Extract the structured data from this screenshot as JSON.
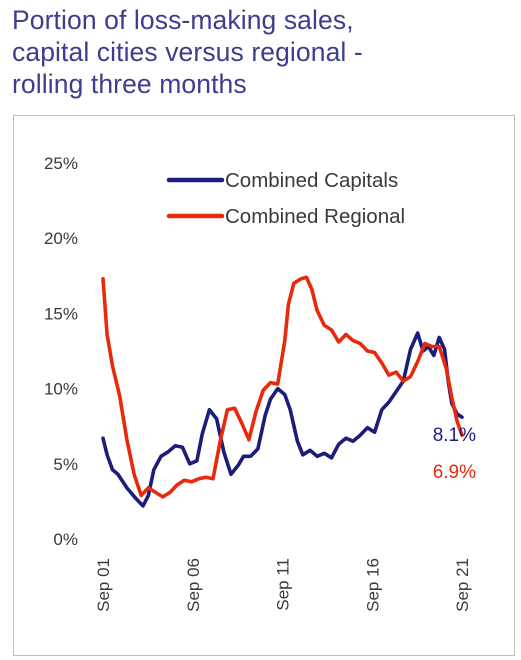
{
  "title_lines": [
    "Portion of loss-making sales,",
    "capital cities versus regional -",
    "rolling three months"
  ],
  "colors": {
    "capitals": "#1c1c7a",
    "regional": "#e8290b",
    "title": "#3d3d8f"
  },
  "chart_data": {
    "type": "line",
    "title": "Portion of loss-making sales, capital cities versus regional - rolling three months",
    "xlabel": "",
    "ylabel": "",
    "ylim": [
      0,
      25
    ],
    "y_ticks": [
      "0%",
      "5%",
      "10%",
      "15%",
      "20%",
      "25%"
    ],
    "y_tick_values": [
      0,
      5,
      10,
      15,
      20,
      25
    ],
    "x_ticks": [
      "Sep 01",
      "Sep 06",
      "Sep 11",
      "Sep 16",
      "Sep 21"
    ],
    "x_tick_values": [
      2001.67,
      2006.67,
      2011.67,
      2016.67,
      2021.67
    ],
    "grid": false,
    "legend_position": "top-right",
    "series": [
      {
        "name": "Combined Capitals",
        "end_label": "8.1%",
        "x": [
          2001.67,
          2001.9,
          2002.2,
          2002.5,
          2003.0,
          2003.5,
          2003.9,
          2004.2,
          2004.5,
          2004.9,
          2005.3,
          2005.7,
          2006.1,
          2006.5,
          2006.9,
          2007.2,
          2007.6,
          2008.0,
          2008.4,
          2008.8,
          2009.2,
          2009.5,
          2009.9,
          2010.3,
          2010.7,
          2011.0,
          2011.4,
          2011.8,
          2012.1,
          2012.5,
          2012.8,
          2013.2,
          2013.6,
          2014.0,
          2014.4,
          2014.8,
          2015.2,
          2015.6,
          2016.0,
          2016.4,
          2016.8,
          2017.2,
          2017.6,
          2018.0,
          2018.4,
          2018.8,
          2019.2,
          2019.5,
          2019.8,
          2020.1,
          2020.4,
          2020.7,
          2020.9,
          2021.1,
          2021.4,
          2021.67
        ],
        "y": [
          6.7,
          5.6,
          4.6,
          4.3,
          3.4,
          2.7,
          2.2,
          2.9,
          4.6,
          5.5,
          5.8,
          6.2,
          6.1,
          5.0,
          5.2,
          7.0,
          8.6,
          8.0,
          5.8,
          4.3,
          4.9,
          5.5,
          5.5,
          6.0,
          8.2,
          9.3,
          10.0,
          9.6,
          8.6,
          6.5,
          5.6,
          5.9,
          5.5,
          5.7,
          5.4,
          6.3,
          6.7,
          6.5,
          6.9,
          7.4,
          7.1,
          8.6,
          9.1,
          9.8,
          10.5,
          12.6,
          13.7,
          12.5,
          12.8,
          12.2,
          13.4,
          12.6,
          10.5,
          9.0,
          8.3,
          8.1
        ]
      },
      {
        "name": "Combined Regional",
        "end_label": "6.9%",
        "x": [
          2001.67,
          2001.9,
          2002.2,
          2002.6,
          2003.0,
          2003.4,
          2003.8,
          2004.2,
          2004.6,
          2005.0,
          2005.4,
          2005.8,
          2006.2,
          2006.6,
          2007.0,
          2007.4,
          2007.8,
          2008.2,
          2008.6,
          2009.0,
          2009.4,
          2009.8,
          2010.2,
          2010.6,
          2011.0,
          2011.4,
          2011.8,
          2012.0,
          2012.3,
          2012.7,
          2013.0,
          2013.3,
          2013.6,
          2014.0,
          2014.4,
          2014.8,
          2015.2,
          2015.6,
          2016.0,
          2016.4,
          2016.8,
          2017.2,
          2017.6,
          2018.0,
          2018.4,
          2018.8,
          2019.2,
          2019.6,
          2020.0,
          2020.4,
          2020.8,
          2021.1,
          2021.4,
          2021.67
        ],
        "y": [
          17.3,
          13.6,
          11.5,
          9.5,
          6.6,
          4.3,
          2.9,
          3.4,
          3.1,
          2.8,
          3.1,
          3.6,
          3.9,
          3.8,
          4.0,
          4.1,
          4.0,
          6.5,
          8.6,
          8.7,
          7.7,
          6.6,
          8.5,
          9.9,
          10.4,
          10.3,
          13.2,
          15.6,
          17.0,
          17.3,
          17.4,
          16.6,
          15.2,
          14.2,
          13.9,
          13.1,
          13.6,
          13.2,
          13.0,
          12.5,
          12.4,
          11.7,
          10.9,
          11.1,
          10.5,
          10.8,
          11.8,
          13.0,
          12.8,
          12.8,
          11.3,
          9.4,
          7.8,
          6.9
        ]
      }
    ]
  }
}
